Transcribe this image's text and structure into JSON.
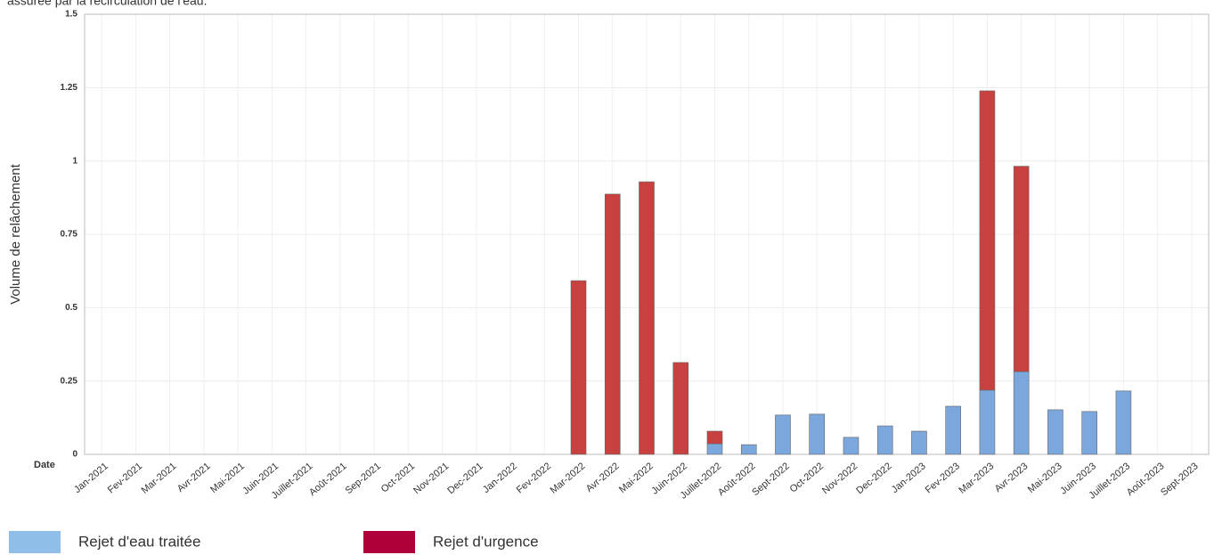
{
  "chart_data": {
    "type": "stacked_bar",
    "subtitle": "assurée par la recirculation de l'eau.",
    "x_label": "Date",
    "y_label": "Volume de relâchement",
    "categories": [
      "Jan-2021",
      "Fev-2021",
      "Mar-2021",
      "Avr-2021",
      "Mai-2021",
      "Juin-2021",
      "Juillet-2021",
      "Août-2021",
      "Sep-2021",
      "Oct-2021",
      "Nov-2021",
      "Dec-2021",
      "Jan-2022",
      "Fev-2022",
      "Mar-2022",
      "Avr-2022",
      "Mai-2022",
      "Juin-2022",
      "Juillet-2022",
      "Août-2022",
      "Sept-2022",
      "Oct-2022",
      "Nov-2022",
      "Dec-2022",
      "Jan-2023",
      "Fev-2023",
      "Mar-2023",
      "Avr-2023",
      "Mai-2023",
      "Juin-2023",
      "Juillet-2023",
      "Août-2023",
      "Sept-2023"
    ],
    "series": [
      {
        "name": "Rejet d'eau traitée",
        "color": "#7ba7dc",
        "legend_color": "#8fbfe8",
        "values": [
          0,
          0,
          0,
          0,
          0,
          0,
          0,
          0,
          0,
          0,
          0,
          0,
          0,
          0,
          0,
          0,
          0,
          0,
          0.036,
          0.033,
          0.134,
          0.137,
          0.058,
          0.097,
          0.079,
          0.164,
          0.219,
          0.282,
          0.152,
          0.146,
          0.216,
          0,
          0
        ]
      },
      {
        "name": "Rejet d'urgence",
        "color": "#c84040",
        "legend_color": "#b0003a",
        "values": [
          0,
          0,
          0,
          0,
          0,
          0,
          0,
          0,
          0,
          0,
          0,
          0,
          0,
          0,
          0.592,
          0.887,
          0.929,
          0.313,
          0.043,
          0,
          0,
          0,
          0,
          0,
          0,
          0,
          1.02,
          0.7,
          0,
          0,
          0,
          0,
          0
        ]
      }
    ],
    "ylim": [
      0,
      1.5
    ],
    "yticks": [
      0,
      0.25,
      0.5,
      0.75,
      1,
      1.25,
      1.5
    ],
    "grid": true
  }
}
